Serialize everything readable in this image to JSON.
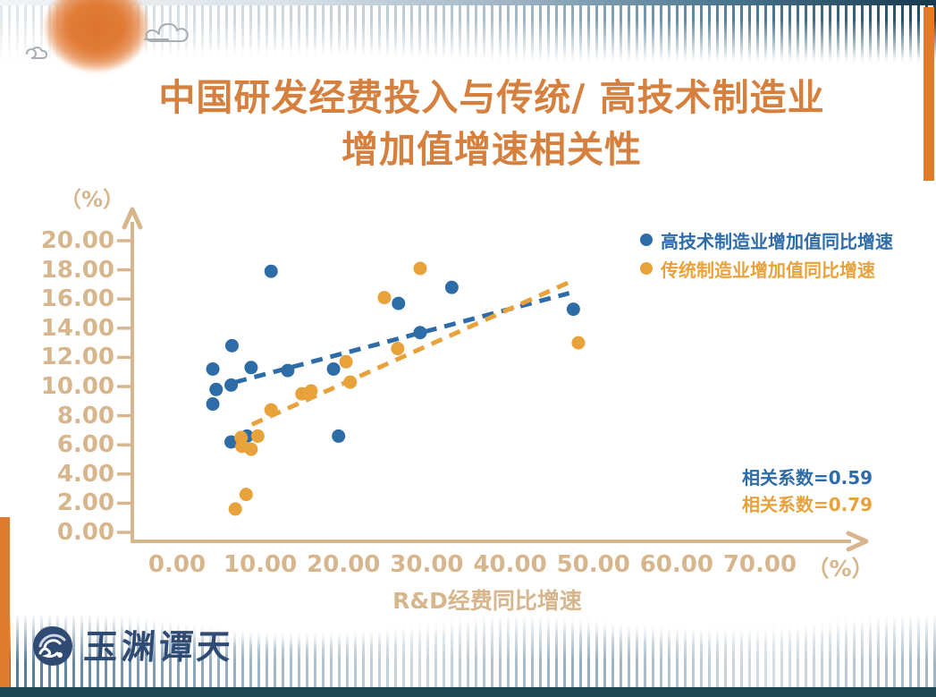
{
  "title": {
    "line1": "中国研发经费投入与传统/ 高技术制造业",
    "line2": "增加值增速相关性"
  },
  "logo": {
    "brand_text": "玉渊谭天"
  },
  "colors": {
    "hightech_blue": "#2e6ca8",
    "traditional_orange": "#e8a23c",
    "title_orange": "#d5803e",
    "axis_tan": "#d7b68d",
    "edge_bar_orange": "#e07b2e",
    "footer_strip_navy": "#1e4756",
    "logo_navy": "#2f4a73"
  },
  "chart_data": {
    "type": "scatter",
    "title": "中国研发经费投入与传统/高技术制造业增加值增速相关性",
    "xlabel": "R&D经费同比增速",
    "ylabel": "",
    "x_unit_label": "（%）",
    "y_unit_label": "（%）",
    "xlim": [
      0,
      70
    ],
    "ylim": [
      0,
      20
    ],
    "x_ticks": [
      "0.00",
      "10.00",
      "20.00",
      "30.00",
      "40.00",
      "50.00",
      "60.00",
      "70.00"
    ],
    "y_ticks": [
      "0.00",
      "2.00",
      "4.00",
      "6.00",
      "8.00",
      "10.00",
      "12.00",
      "14.00",
      "16.00",
      "18.00",
      "20.00"
    ],
    "grid": false,
    "legend_position": "top-right",
    "series": [
      {
        "name": "高技术制造业增加值同比增速",
        "color": "#2e6ca8",
        "correlation_label": "相关系数=0.59",
        "points": [
          [
            4.3,
            11.2
          ],
          [
            4.7,
            9.8
          ],
          [
            4.3,
            8.8
          ],
          [
            6.6,
            12.8
          ],
          [
            6.5,
            10.1
          ],
          [
            6.5,
            6.2
          ],
          [
            8.4,
            6.6
          ],
          [
            8.9,
            11.3
          ],
          [
            11.3,
            17.9
          ],
          [
            13.3,
            11.1
          ],
          [
            18.8,
            11.2
          ],
          [
            19.4,
            6.6
          ],
          [
            26.6,
            15.7
          ],
          [
            29.2,
            13.7
          ],
          [
            33.0,
            16.8
          ],
          [
            47.6,
            15.3
          ]
        ],
        "trend": [
          [
            7.0,
            10.3
          ],
          [
            47.1,
            16.4
          ]
        ]
      },
      {
        "name": "传统制造业增加值同比增速",
        "color": "#e8a23c",
        "correlation_label": "相关系数=0.79",
        "points": [
          [
            7.0,
            1.6
          ],
          [
            7.7,
            6.5
          ],
          [
            7.8,
            5.9
          ],
          [
            8.3,
            2.6
          ],
          [
            8.9,
            5.7
          ],
          [
            9.7,
            6.6
          ],
          [
            11.3,
            8.4
          ],
          [
            15.0,
            9.5
          ],
          [
            16.1,
            9.7
          ],
          [
            20.3,
            11.7
          ],
          [
            20.8,
            10.3
          ],
          [
            24.9,
            16.1
          ],
          [
            26.5,
            12.6
          ],
          [
            29.2,
            18.1
          ],
          [
            48.2,
            13.0
          ]
        ],
        "trend": [
          [
            9.0,
            7.4
          ],
          [
            47.3,
            17.2
          ]
        ]
      }
    ]
  }
}
